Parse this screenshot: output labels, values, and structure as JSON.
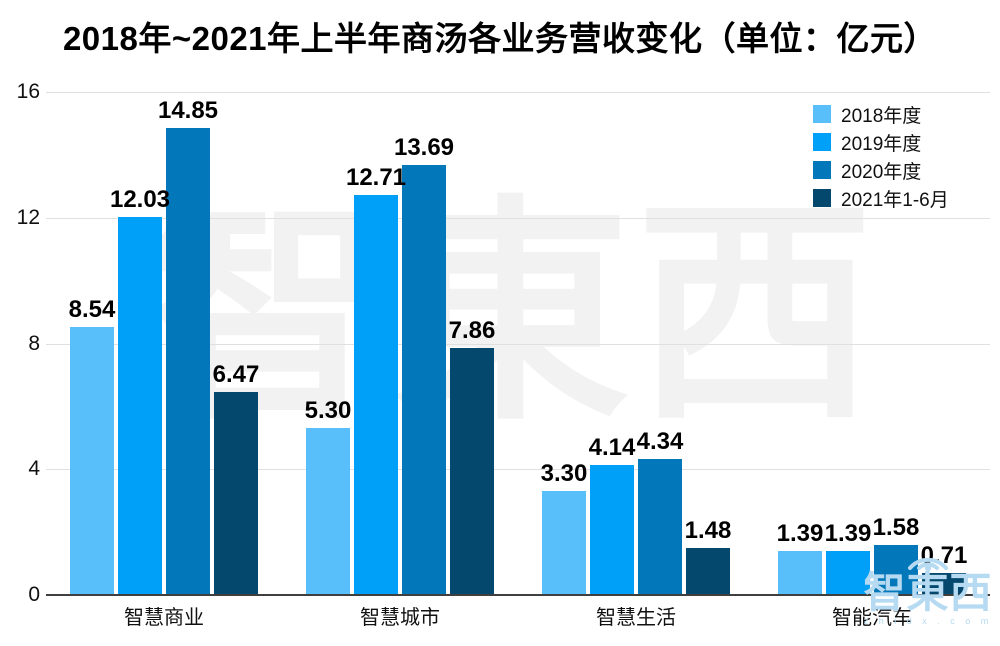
{
  "title": "2018年~2021年上半年商汤各业务营收变化（单位：亿元）",
  "chart_data": {
    "type": "bar",
    "title": "2018年~2021年上半年商汤各业务营收变化（单位：亿元）",
    "unit": "亿元",
    "categories": [
      "智慧商业",
      "智慧城市",
      "智慧生活",
      "智能汽车"
    ],
    "series": [
      {
        "name": "2018年度",
        "color": "#58bffb",
        "values": [
          8.54,
          5.3,
          3.3,
          1.39
        ]
      },
      {
        "name": "2019年度",
        "color": "#00a0f8",
        "values": [
          12.03,
          12.71,
          4.14,
          1.39
        ]
      },
      {
        "name": "2020年度",
        "color": "#0277b9",
        "values": [
          14.85,
          13.69,
          4.34,
          1.58
        ]
      },
      {
        "name": "2021年1-6月",
        "color": "#04486e",
        "values": [
          6.47,
          7.86,
          1.48,
          0.71
        ]
      }
    ],
    "ylim": [
      0,
      16
    ],
    "yticks": [
      0,
      4,
      8,
      12,
      16
    ],
    "grid": true,
    "legend_position": "top-right",
    "value_label_decimals": 2
  },
  "watermark": {
    "center_text": "智東西",
    "corner_text": "智東西",
    "corner_sub": "z h i d x . c o m"
  }
}
